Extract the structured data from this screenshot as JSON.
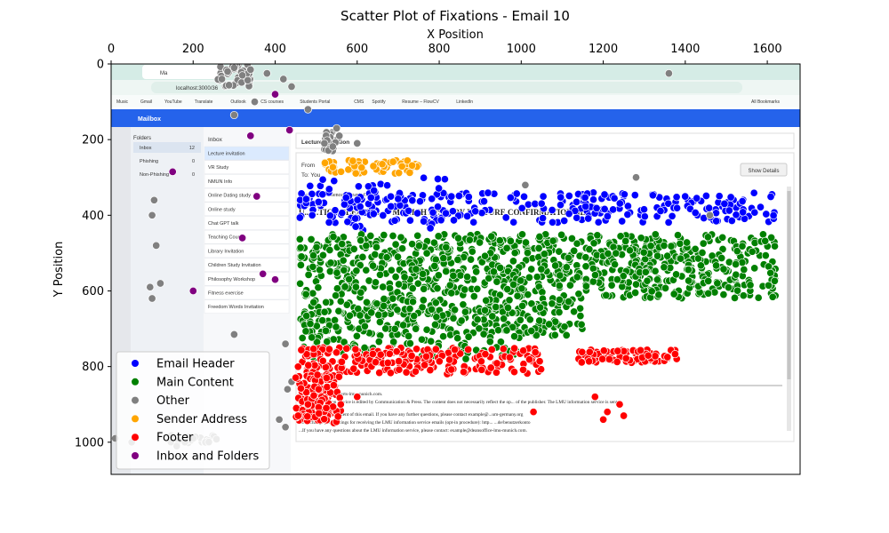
{
  "chart_data": {
    "type": "scatter",
    "title": "Scatter Plot of Fixations - Email 10",
    "xlabel": "X Position",
    "ylabel": "Y Position",
    "xlim": [
      0,
      1680
    ],
    "ylim": [
      1085,
      0
    ],
    "x_axis_position": "top",
    "y_inverted": true,
    "xticks": [
      0,
      200,
      400,
      600,
      800,
      1000,
      1200,
      1400,
      1600
    ],
    "yticks": [
      0,
      200,
      400,
      600,
      800,
      1000
    ],
    "grid": false,
    "legend_position": "bottom-left",
    "series": [
      {
        "name": "Email Header",
        "color": "#0000ff",
        "regions": [
          {
            "x": [
              460,
              1620
            ],
            "y": [
              340,
              420
            ],
            "n": 260
          },
          {
            "x": [
              460,
              900
            ],
            "y": [
              300,
              440
            ],
            "n": 60
          }
        ]
      },
      {
        "name": "Main Content",
        "color": "#008000",
        "regions": [
          {
            "x": [
              460,
              1620
            ],
            "y": [
              450,
              530
            ],
            "n": 420
          },
          {
            "x": [
              460,
              1620
            ],
            "y": [
              530,
              620
            ],
            "n": 420
          },
          {
            "x": [
              460,
              1150
            ],
            "y": [
              620,
              720
            ],
            "n": 300
          },
          {
            "x": [
              460,
              1000
            ],
            "y": [
              720,
              780
            ],
            "n": 80
          }
        ]
      },
      {
        "name": "Other",
        "color": "#808080",
        "points": [
          [
            300,
            10
          ],
          [
            340,
            15
          ],
          [
            320,
            30
          ],
          [
            380,
            25
          ],
          [
            420,
            40
          ],
          [
            270,
            40
          ],
          [
            440,
            60
          ],
          [
            480,
            120
          ],
          [
            300,
            135
          ],
          [
            350,
            100
          ],
          [
            550,
            170
          ],
          [
            520,
            210
          ],
          [
            100,
            400
          ],
          [
            105,
            360
          ],
          [
            110,
            480
          ],
          [
            95,
            590
          ],
          [
            100,
            620
          ],
          [
            120,
            580
          ],
          [
            200,
            990
          ],
          [
            180,
            1000
          ],
          [
            160,
            1010
          ],
          [
            10,
            990
          ],
          [
            50,
            1000
          ],
          [
            410,
            940
          ],
          [
            425,
            960
          ],
          [
            430,
            860
          ],
          [
            440,
            840
          ],
          [
            425,
            740
          ],
          [
            300,
            715
          ],
          [
            1360,
            25
          ],
          [
            1280,
            300
          ],
          [
            1010,
            320
          ],
          [
            600,
            210
          ],
          [
            1460,
            400
          ]
        ],
        "regions": [
          {
            "x": [
              260,
              340
            ],
            "y": [
              0,
              60
            ],
            "n": 40
          },
          {
            "x": [
              520,
              560
            ],
            "y": [
              180,
              230
            ],
            "n": 25
          },
          {
            "x": [
              140,
              260
            ],
            "y": [
              980,
              1010
            ],
            "n": 20
          }
        ]
      },
      {
        "name": "Sender Address",
        "color": "#ffa500",
        "regions": [
          {
            "x": [
              510,
              750
            ],
            "y": [
              255,
              290
            ],
            "n": 60
          }
        ]
      },
      {
        "name": "Footer",
        "color": "#ff0000",
        "regions": [
          {
            "x": [
              450,
              1050
            ],
            "y": [
              750,
              820
            ],
            "n": 220
          },
          {
            "x": [
              450,
              560
            ],
            "y": [
              820,
              950
            ],
            "n": 120
          },
          {
            "x": [
              1140,
              1380
            ],
            "y": [
              755,
              790
            ],
            "n": 80
          }
        ],
        "points": [
          [
            1030,
            920
          ],
          [
            1180,
            880
          ],
          [
            1240,
            900
          ],
          [
            1250,
            930
          ],
          [
            1210,
            920
          ],
          [
            1200,
            940
          ],
          [
            560,
            900
          ],
          [
            600,
            880
          ],
          [
            480,
            900
          ]
        ]
      },
      {
        "name": "Inbox and Folders",
        "color": "#800080",
        "points": [
          [
            400,
            80
          ],
          [
            150,
            285
          ],
          [
            340,
            190
          ],
          [
            355,
            350
          ],
          [
            320,
            460
          ],
          [
            200,
            600
          ],
          [
            400,
            570
          ],
          [
            370,
            555
          ],
          [
            435,
            175
          ]
        ]
      }
    ]
  },
  "screenshot": {
    "tab_label": "Ma",
    "url": "localhost:3000/36",
    "bookmarks": [
      "Music",
      "Gmail",
      "YouTube",
      "Translate",
      "Outlook",
      "CS courses",
      "Students Portal",
      "CMS",
      "Spotify",
      "Resume – FlowCV",
      "LinkedIn"
    ],
    "all_bookmarks": "All Bookmarks",
    "app_title": "Mailbox",
    "folders_heading": "Folders",
    "folders": [
      {
        "name": "Inbox",
        "count": "12"
      },
      {
        "name": "Phishing",
        "count": "0"
      },
      {
        "name": "Non-Phishing",
        "count": "0"
      }
    ],
    "list_heading": "Inbox",
    "emails": [
      "Lecture invitation",
      "VR Study",
      "NMUN Info",
      "Online Dating study",
      "Online study",
      "Chat GPT talk",
      "Teaching Course",
      "Library Invitation",
      "Children Study Invitation",
      "Philosophy Workshop",
      "Fitness exercise",
      "Freedom Words Invitation"
    ],
    "subject": "Lecture invitation",
    "from_label": "From",
    "to_label": "To: You",
    "show_details": "Show Details",
    "faculty_line": "Faculty...                                          ...t Sciences, Dean's Office",
    "headline": "U...                    ...TION PLEASE D...  - MUNICH HISTORY LECTURE CONFIRMATION NEEDED",
    "footer_lines": [
      "...s sent ...ple@historyarts-lmu-munich.com.",
      "...entral information service is edited by Communication & Press. The content does not necessarily reflect the op... of the publisher. The LMU information service is sent",
      "...sponsible for the content of this email. If you have any further questions, please contact example@...um-germany.org",
      "...can change your settings for receiving the LMU information service emails (opt-in procedure): http...  ...de/benutzerkonto",
      "...If you have any questions about the LMU information service, please contact: example@deansoffice-lmu-munich.com."
    ]
  }
}
